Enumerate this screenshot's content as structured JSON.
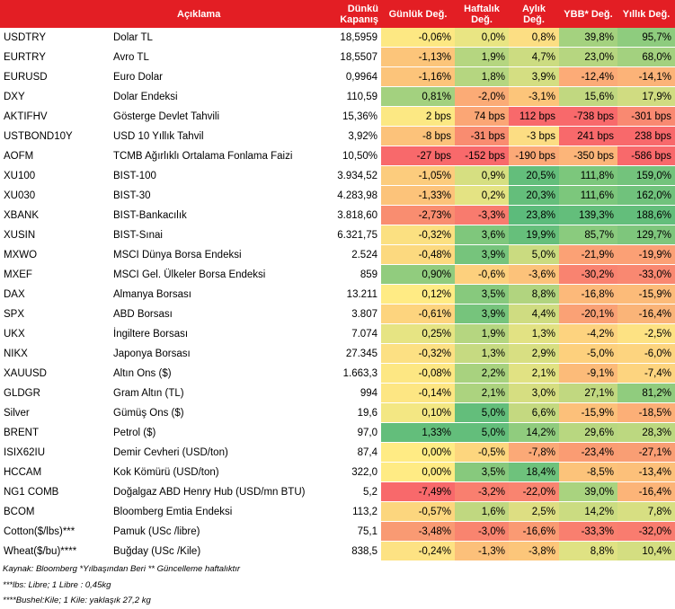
{
  "headers": {
    "code": "",
    "desc": "Açıklama",
    "close": "Dünkü Kapanış",
    "daily": "Günlük Değ.",
    "weekly": "Haftalık Değ.",
    "monthly": "Aylık Değ.",
    "ytd": "YBB* Değ.",
    "yearly": "Yıllık Değ."
  },
  "rows": [
    {
      "code": "USDTRY",
      "desc": "Dolar TL",
      "close": "18,5959",
      "daily": "-0,06%",
      "weekly": "0,0%",
      "monthly": "0,8%",
      "ytd": "39,8%",
      "yearly": "95,7%"
    },
    {
      "code": "EURTRY",
      "desc": "Avro TL",
      "close": "18,5507",
      "daily": "-1,13%",
      "weekly": "1,9%",
      "monthly": "4,7%",
      "ytd": "23,0%",
      "yearly": "68,0%"
    },
    {
      "code": "EURUSD",
      "desc": "Euro Dolar",
      "close": "0,9964",
      "daily": "-1,16%",
      "weekly": "1,8%",
      "monthly": "3,9%",
      "ytd": "-12,4%",
      "yearly": "-14,1%"
    },
    {
      "code": "DXY",
      "desc": "Dolar Endeksi",
      "close": "110,59",
      "daily": "0,81%",
      "weekly": "-2,0%",
      "monthly": "-3,1%",
      "ytd": "15,6%",
      "yearly": "17,9%"
    },
    {
      "code": "AKTIFHV",
      "desc": "Gösterge Devlet Tahvili",
      "close": "15,36%",
      "daily": "2 bps",
      "weekly": "74 bps",
      "monthly": "112 bps",
      "ytd": "-738 bps",
      "yearly": "-301 bps"
    },
    {
      "code": "USTBOND10Y",
      "desc": "USD 10 Yıllık Tahvil",
      "close": "3,92%",
      "daily": "-8 bps",
      "weekly": "-31 bps",
      "monthly": "-3 bps",
      "ytd": "241 bps",
      "yearly": "238 bps"
    },
    {
      "code": "AOFM",
      "desc": "TCMB Ağırlıklı Ortalama Fonlama Faizi",
      "close": "10,50%",
      "daily": "-27 bps",
      "weekly": "-152 bps",
      "monthly": "-190 bps",
      "ytd": "-350 bps",
      "yearly": "-586 bps"
    },
    {
      "code": "XU100",
      "desc": "BIST-100",
      "close": "3.934,52",
      "daily": "-1,05%",
      "weekly": "0,9%",
      "monthly": "20,5%",
      "ytd": "111,8%",
      "yearly": "159,0%"
    },
    {
      "code": "XU030",
      "desc": "BIST-30",
      "close": "4.283,98",
      "daily": "-1,33%",
      "weekly": "0,2%",
      "monthly": "20,3%",
      "ytd": "111,6%",
      "yearly": "162,0%"
    },
    {
      "code": "XBANK",
      "desc": "BIST-Bankacılık",
      "close": "3.818,60",
      "daily": "-2,73%",
      "weekly": "-3,3%",
      "monthly": "23,8%",
      "ytd": "139,3%",
      "yearly": "188,6%"
    },
    {
      "code": "XUSIN",
      "desc": "BIST-Sınai",
      "close": "6.321,75",
      "daily": "-0,32%",
      "weekly": "3,6%",
      "monthly": "19,9%",
      "ytd": "85,7%",
      "yearly": "129,7%"
    },
    {
      "code": "MXWO",
      "desc": "MSCI Dünya Borsa Endeksi",
      "close": "2.524",
      "daily": "-0,48%",
      "weekly": "3,9%",
      "monthly": "5,0%",
      "ytd": "-21,9%",
      "yearly": "-19,9%"
    },
    {
      "code": "MXEF",
      "desc": "MSCI Gel. Ülkeler Borsa Endeksi",
      "close": "859",
      "daily": "0,90%",
      "weekly": "-0,6%",
      "monthly": "-3,6%",
      "ytd": "-30,2%",
      "yearly": "-33,0%"
    },
    {
      "code": "DAX",
      "desc": "Almanya Borsası",
      "close": "13.211",
      "daily": "0,12%",
      "weekly": "3,5%",
      "monthly": "8,8%",
      "ytd": "-16,8%",
      "yearly": "-15,9%"
    },
    {
      "code": "SPX",
      "desc": "ABD Borsası",
      "close": "3.807",
      "daily": "-0,61%",
      "weekly": "3,9%",
      "monthly": "4,4%",
      "ytd": "-20,1%",
      "yearly": "-16,4%"
    },
    {
      "code": "UKX",
      "desc": "İngiltere Borsası",
      "close": "7.074",
      "daily": "0,25%",
      "weekly": "1,9%",
      "monthly": "1,3%",
      "ytd": "-4,2%",
      "yearly": "-2,5%"
    },
    {
      "code": "NIKX",
      "desc": "Japonya Borsası",
      "close": "27.345",
      "daily": "-0,32%",
      "weekly": "1,3%",
      "monthly": "2,9%",
      "ytd": "-5,0%",
      "yearly": "-6,0%"
    },
    {
      "code": "XAUUSD",
      "desc": "Altın Ons ($)",
      "close": "1.663,3",
      "daily": "-0,08%",
      "weekly": "2,2%",
      "monthly": "2,1%",
      "ytd": "-9,1%",
      "yearly": "-7,4%"
    },
    {
      "code": "GLDGR",
      "desc": "Gram Altın (TL)",
      "close": "994",
      "daily": "-0,14%",
      "weekly": "2,1%",
      "monthly": "3,0%",
      "ytd": "27,1%",
      "yearly": "81,2%"
    },
    {
      "code": "Silver",
      "desc": "Gümüş Ons ($)",
      "close": "19,6",
      "daily": "0,10%",
      "weekly": "5,0%",
      "monthly": "6,6%",
      "ytd": "-15,9%",
      "yearly": "-18,5%"
    },
    {
      "code": "BRENT",
      "desc": "Petrol ($)",
      "close": "97,0",
      "daily": "1,33%",
      "weekly": "5,0%",
      "monthly": "14,2%",
      "ytd": "29,6%",
      "yearly": "28,3%"
    },
    {
      "code": "ISIX62IU",
      "desc": "Demir Cevheri (USD/ton)",
      "close": "87,4",
      "daily": "0,00%",
      "weekly": "-0,5%",
      "monthly": "-7,8%",
      "ytd": "-23,4%",
      "yearly": "-27,1%"
    },
    {
      "code": "HCCAM",
      "desc": "Kok Kömürü (USD/ton)",
      "close": "322,0",
      "daily": "0,00%",
      "weekly": "3,5%",
      "monthly": "18,4%",
      "ytd": "-8,5%",
      "yearly": "-13,4%"
    },
    {
      "code": "NG1 COMB",
      "desc": "Doğalgaz ABD Henry Hub (USD/mn BTU)",
      "close": "5,2",
      "daily": "-7,49%",
      "weekly": "-3,2%",
      "monthly": "-22,0%",
      "ytd": "39,0%",
      "yearly": "-16,4%"
    },
    {
      "code": "BCOM",
      "desc": "Bloomberg Emtia Endeksi",
      "close": "113,2",
      "daily": "-0,57%",
      "weekly": "1,6%",
      "monthly": "2,5%",
      "ytd": "14,2%",
      "yearly": "7,8%"
    },
    {
      "code": "Cotton($/lbs)***",
      "desc": "Pamuk (USc /libre)",
      "close": "75,1",
      "daily": "-3,48%",
      "weekly": "-3,0%",
      "monthly": "-16,6%",
      "ytd": "-33,3%",
      "yearly": "-32,0%"
    },
    {
      "code": "Wheat($/bu)****",
      "desc": "Buğday (USc /Kile)",
      "close": "838,5",
      "daily": "-0,24%",
      "weekly": "-1,3%",
      "monthly": "-3,8%",
      "ytd": "8,8%",
      "yearly": "10,4%"
    }
  ],
  "cell_colors": {
    "daily": [
      "#fde883",
      "#fcc57a",
      "#fcc47a",
      "#a3d17f",
      "#fce883",
      "#fcc27a",
      "#f8696b",
      "#fccc7d",
      "#fcc37a",
      "#f98d70",
      "#fbe081",
      "#fcd97f",
      "#91cc7e",
      "#ffeb84",
      "#fdd47e",
      "#e6e483",
      "#fce083",
      "#fde783",
      "#fde683",
      "#f3e783",
      "#63be7b",
      "#ffeb84",
      "#ffeb84",
      "#f8696b",
      "#fcd67e",
      "#f99a73",
      "#fde283"
    ],
    "weekly": [
      "#e9e583",
      "#b5d680",
      "#b5d680",
      "#fbab76",
      "#fba675",
      "#f98c70",
      "#f8696b",
      "#d6df81",
      "#e4e383",
      "#f87b6e",
      "#7fc77c",
      "#76c47c",
      "#fdd07d",
      "#87c97d",
      "#76c47c",
      "#b5d680",
      "#c6da81",
      "#a8d27f",
      "#acd37f",
      "#63be7b",
      "#63be7b",
      "#fdd67e",
      "#87c97d",
      "#f97f6f",
      "#c0d880",
      "#f9846f",
      "#fcc07a"
    ],
    "monthly": [
      "#fcde83",
      "#ccdc81",
      "#d4de82",
      "#fcc57a",
      "#f8696b",
      "#fcdd83",
      "#fba977",
      "#63be7b",
      "#64be7b",
      "#5cbb7b",
      "#66bf7b",
      "#cadb80",
      "#fcc27a",
      "#b1d47f",
      "#cfdc81",
      "#e2e283",
      "#d8df82",
      "#e1e283",
      "#d6de81",
      "#c4d980",
      "#90cc7e",
      "#fba977",
      "#6ec27c",
      "#f98470",
      "#ddde82",
      "#fa9a73",
      "#fcc67a"
    ],
    "ytd": [
      "#a4d27f",
      "#b6d680",
      "#fcab77",
      "#c1d880",
      "#f8696b",
      "#f8696b",
      "#fcb579",
      "#7cc77c",
      "#7cc77c",
      "#63be7b",
      "#8acb7e",
      "#fba175",
      "#f98370",
      "#fcb97a",
      "#faa175",
      "#fdd37f",
      "#fdd07d",
      "#fcbb79",
      "#c1d880",
      "#fcc07a",
      "#b8d780",
      "#fa9c73",
      "#fcc37a",
      "#a9d37f",
      "#cbdc81",
      "#f97f6f",
      "#dfe283"
    ],
    "yearly": [
      "#8ecc7e",
      "#a3d17f",
      "#fcb378",
      "#d0dc81",
      "#f98971",
      "#f8696b",
      "#f8696b",
      "#73c37c",
      "#70c27c",
      "#63be7b",
      "#7ec67c",
      "#fba075",
      "#f98871",
      "#fcbb79",
      "#fab478",
      "#fde283",
      "#fdd47f",
      "#fdd47f",
      "#90cc7e",
      "#fcaf77",
      "#bcd880",
      "#f99e74",
      "#fcc07a",
      "#fcb478",
      "#d7df82",
      "#f97c6f",
      "#d4de81"
    ]
  },
  "footer": {
    "line1": "Kaynak: Bloomberg *Yılbaşından Beri  ** Güncelleme haftalıktır",
    "line2": "***lbs: Libre; 1 Libre : 0,45kg",
    "line3": "****Bushel:Kile; 1 Kile: yaklaşık 27,2 kg"
  }
}
